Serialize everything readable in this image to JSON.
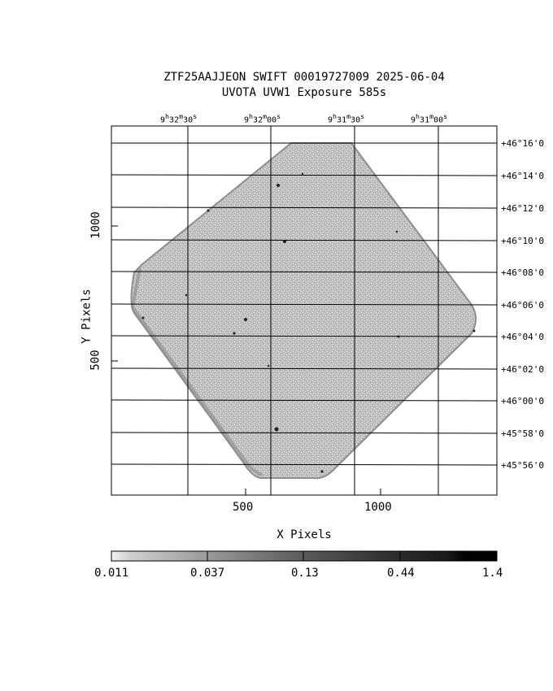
{
  "plot": {
    "title_line1": "ZTF25AAJJEON SWIFT 00019727009 2025-06-04",
    "title_line2": "UVOTA UVW1 Exposure        585s",
    "xlabel": "X Pixels",
    "ylabel": "Y Pixels",
    "ra_ticks": [
      {
        "h": "9",
        "m": "32",
        "s": "30"
      },
      {
        "h": "9",
        "m": "32",
        "s": "00"
      },
      {
        "h": "9",
        "m": "31",
        "s": "30"
      },
      {
        "h": "9",
        "m": "31",
        "s": "00"
      }
    ],
    "dec_ticks": [
      "+46°16'0",
      "+46°14'0",
      "+46°12'0",
      "+46°10'0",
      "+46°08'0",
      "+46°06'0",
      "+46°04'0",
      "+46°02'0",
      "+46°00'0",
      "+45°58'0",
      "+45°56'0"
    ],
    "x_ticks": [
      "500",
      "1000"
    ],
    "y_ticks": [
      "1000",
      "500"
    ],
    "colorbar_ticks": [
      "0.011",
      "0.037",
      "0.13",
      "0.44",
      "1.4"
    ]
  },
  "colors": {
    "exposure_fill": "#b8b8b8",
    "exposure_edge": "#9a9a9a",
    "grid": "#000000",
    "background": "#ffffff"
  }
}
